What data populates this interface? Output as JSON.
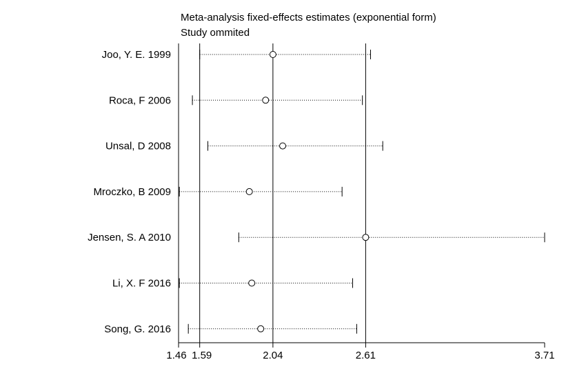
{
  "chart_data": {
    "type": "forest",
    "title": "Meta-analysis fixed-effects estimates (exponential form)",
    "subtitle": "Study ommited",
    "xlim": [
      1.46,
      3.71
    ],
    "xticks": [
      "1.46",
      "1.59",
      "2.04",
      "2.61",
      "3.71"
    ],
    "xtick_values": [
      1.46,
      1.59,
      2.04,
      2.61,
      3.71
    ],
    "reference_lines": [
      1.59,
      2.04,
      2.61
    ],
    "studies": [
      {
        "label": "Joo, Y. E. 1999",
        "estimate": 2.04,
        "lower": 1.59,
        "upper": 2.64
      },
      {
        "label": "Roca, F 2006",
        "estimate": 1.995,
        "lower": 1.545,
        "upper": 2.59
      },
      {
        "label": "Unsal, D 2008",
        "estimate": 2.1,
        "lower": 1.64,
        "upper": 2.715
      },
      {
        "label": "Mroczko, B 2009",
        "estimate": 1.895,
        "lower": 1.465,
        "upper": 2.465
      },
      {
        "label": "Jensen, S. A  2010",
        "estimate": 2.61,
        "lower": 1.83,
        "upper": 3.71
      },
      {
        "label": "Li, X. F 2016",
        "estimate": 1.91,
        "lower": 1.465,
        "upper": 2.53
      },
      {
        "label": "Song, G. 2016",
        "estimate": 1.965,
        "lower": 1.52,
        "upper": 2.555
      }
    ]
  }
}
